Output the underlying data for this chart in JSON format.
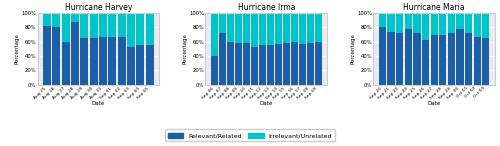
{
  "harvey": {
    "title": "Hurricane Harvey",
    "dates": [
      "Aug 25",
      "Aug 26",
      "Aug 27",
      "Aug 28",
      "Aug 29",
      "Aug 30",
      "Aug 31",
      "Sep 01",
      "Sep 02",
      "Sep 03",
      "Sep 04",
      "Sep 05"
    ],
    "relevant": [
      82,
      80,
      60,
      88,
      65,
      65,
      67,
      67,
      67,
      52,
      55,
      55
    ],
    "irrelevant": [
      18,
      20,
      40,
      12,
      35,
      35,
      33,
      33,
      33,
      48,
      45,
      45
    ]
  },
  "irma": {
    "title": "Hurricane Irma",
    "dates": [
      "Sep 06",
      "Sep 07",
      "Sep 08",
      "Sep 09",
      "Sep 10",
      "Sep 11",
      "Sep 12",
      "Sep 13",
      "Sep 14",
      "Sep 15",
      "Sep 16",
      "Sep 17",
      "Sep 18",
      "Sep 19"
    ],
    "relevant": [
      40,
      72,
      60,
      58,
      58,
      52,
      55,
      56,
      57,
      58,
      60,
      57,
      58,
      60
    ],
    "irrelevant": [
      60,
      28,
      40,
      42,
      42,
      48,
      45,
      44,
      43,
      42,
      40,
      43,
      42,
      40
    ]
  },
  "maria": {
    "title": "Hurricane Maria",
    "dates": [
      "Sep 20",
      "Sep 21",
      "Sep 23",
      "Sep 24",
      "Sep 25",
      "Sep 26",
      "Sep 27",
      "Sep 28",
      "Sep 29",
      "Sep 30",
      "Oct 01",
      "Oct 02",
      "Oct 03"
    ],
    "relevant": [
      80,
      73,
      72,
      78,
      72,
      62,
      70,
      70,
      72,
      78,
      72,
      67,
      65
    ],
    "irrelevant": [
      20,
      27,
      28,
      22,
      28,
      38,
      30,
      30,
      28,
      22,
      28,
      33,
      35
    ]
  },
  "color_relevant": "#1a5fa8",
  "color_irrelevant": "#00c5c8",
  "legend_labels": [
    "Relevant/Related",
    "Irrelevant/Unrelated"
  ],
  "ylabel": "Percentage",
  "xlabel": "Date",
  "yticks": [
    0,
    20,
    40,
    60,
    80,
    100
  ],
  "ytick_labels": [
    "0%",
    "20%",
    "40%",
    "60%",
    "80%",
    "100%"
  ],
  "bg_color": "#eaeaf4"
}
